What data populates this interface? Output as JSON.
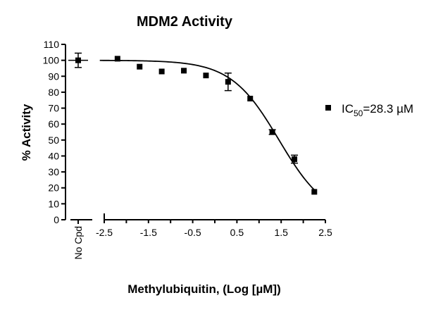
{
  "chart_data": {
    "type": "scatter",
    "title": "MDM2 Activity",
    "xlabel": "Methylubiquitin, (Log [µM])",
    "ylabel": "% Activity",
    "xlim": [
      -2.5,
      2.5
    ],
    "ylim": [
      0,
      110
    ],
    "x_ticks": [
      "-2.5",
      "-1.5",
      "-0.5",
      "0.5",
      "1.5",
      "2.5"
    ],
    "x_ticks_all": [
      -2.5,
      -2.0,
      -1.5,
      -1.0,
      -0.5,
      0.0,
      0.5,
      1.0,
      1.5,
      2.0,
      2.5
    ],
    "y_ticks": [
      "0",
      "10",
      "20",
      "30",
      "40",
      "50",
      "60",
      "70",
      "80",
      "90",
      "100",
      "110"
    ],
    "control_label": "No Cpd",
    "control_point": {
      "y": 100,
      "err": 4.5
    },
    "series": [
      {
        "name": "IC50=28.3 µM",
        "legend_main": "IC",
        "legend_sub": "50",
        "legend_rest": "=28.3 µM",
        "marker": "square",
        "color": "#000000",
        "points": [
          {
            "x": -2.2,
            "y": 101,
            "err": 0
          },
          {
            "x": -1.7,
            "y": 96,
            "err": 0
          },
          {
            "x": -1.2,
            "y": 93,
            "err": 0
          },
          {
            "x": -0.7,
            "y": 93.5,
            "err": 0
          },
          {
            "x": -0.2,
            "y": 90.5,
            "err": 0
          },
          {
            "x": 0.3,
            "y": 86.5,
            "err": 5.5
          },
          {
            "x": 0.8,
            "y": 76,
            "err": 0
          },
          {
            "x": 1.3,
            "y": 55,
            "err": 1.5
          },
          {
            "x": 1.8,
            "y": 38,
            "err": 2.5
          },
          {
            "x": 2.25,
            "y": 17.5,
            "err": 0
          }
        ]
      }
    ],
    "fit": {
      "top": 100,
      "bottom": 0,
      "log_ic50": 1.452,
      "hill": -0.8,
      "x_range": [
        -2.6,
        2.25
      ]
    },
    "legend_position": "right",
    "grid": false
  }
}
